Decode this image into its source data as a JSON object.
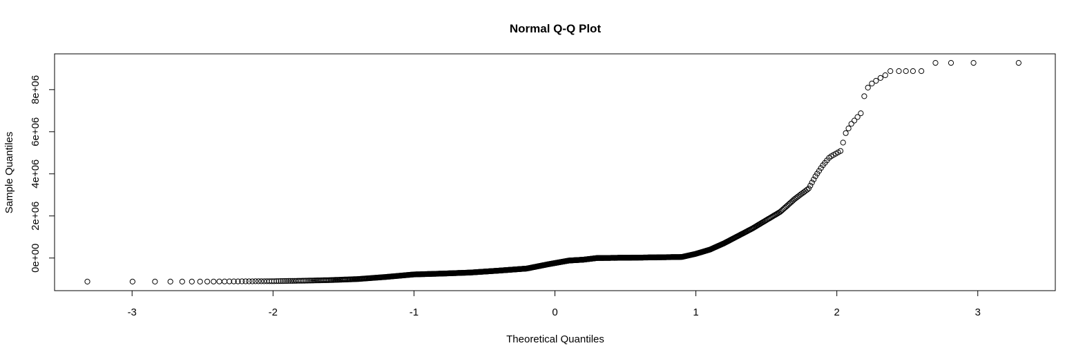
{
  "chart_data": {
    "type": "scatter",
    "title": "Normal Q-Q Plot",
    "xlabel": "Theoretical Quantiles",
    "ylabel": "Sample Quantiles",
    "xlim": [
      -3.55,
      3.55
    ],
    "ylim": [
      -1550000,
      9700000
    ],
    "x_ticks": [
      -3,
      -2,
      -1,
      0,
      1,
      2,
      3
    ],
    "x_tick_labels": [
      "-3",
      "-2",
      "-1",
      "0",
      "1",
      "2",
      "3"
    ],
    "y_ticks": [
      0,
      2000000,
      4000000,
      6000000,
      8000000
    ],
    "y_tick_labels": [
      "0e+00",
      "2e+06",
      "4e+06",
      "6e+06",
      "8e+06"
    ],
    "grid": false,
    "marker": "open-circle",
    "marker_color": "#000000",
    "anchor_points": [
      [
        -3.3,
        -1120000
      ],
      [
        -2.97,
        -1120000
      ],
      [
        -2.8,
        -1120000
      ],
      [
        -2.69,
        -1120000
      ],
      [
        -2.6,
        -1120000
      ],
      [
        -2.52,
        -1120000
      ],
      [
        -2.0,
        -1100000
      ],
      [
        -1.8,
        -1080000
      ],
      [
        -1.6,
        -1050000
      ],
      [
        -1.4,
        -1000000
      ],
      [
        -1.2,
        -900000
      ],
      [
        -1.0,
        -780000
      ],
      [
        -0.8,
        -740000
      ],
      [
        -0.6,
        -690000
      ],
      [
        -0.4,
        -600000
      ],
      [
        -0.2,
        -500000
      ],
      [
        -0.05,
        -300000
      ],
      [
        0.1,
        -120000
      ],
      [
        0.2,
        -80000
      ],
      [
        0.3,
        0
      ],
      [
        0.6,
        20000
      ],
      [
        0.9,
        50000
      ],
      [
        1.0,
        200000
      ],
      [
        1.1,
        400000
      ],
      [
        1.2,
        700000
      ],
      [
        1.3,
        1050000
      ],
      [
        1.4,
        1400000
      ],
      [
        1.5,
        1800000
      ],
      [
        1.6,
        2200000
      ],
      [
        1.7,
        2800000
      ],
      [
        1.8,
        3300000
      ],
      [
        1.85,
        3900000
      ],
      [
        1.9,
        4400000
      ],
      [
        1.95,
        4800000
      ],
      [
        2.03,
        5100000
      ],
      [
        2.06,
        5900000
      ],
      [
        2.1,
        6350000
      ],
      [
        2.18,
        6950000
      ],
      [
        2.2,
        7950000
      ],
      [
        2.25,
        8300000
      ],
      [
        2.32,
        8600000
      ],
      [
        2.4,
        8880000
      ],
      [
        2.6,
        8880000
      ],
      [
        2.7,
        9270000
      ],
      [
        3.29,
        9270000
      ]
    ],
    "outlier_points": [
      [
        2.38,
        8880000
      ],
      [
        2.44,
        8880000
      ],
      [
        2.49,
        8880000
      ],
      [
        2.54,
        8880000
      ],
      [
        2.6,
        8880000
      ],
      [
        2.7,
        9270000
      ],
      [
        2.81,
        9270000
      ],
      [
        2.97,
        9270000
      ],
      [
        3.29,
        9270000
      ]
    ],
    "n_points": 1100
  }
}
